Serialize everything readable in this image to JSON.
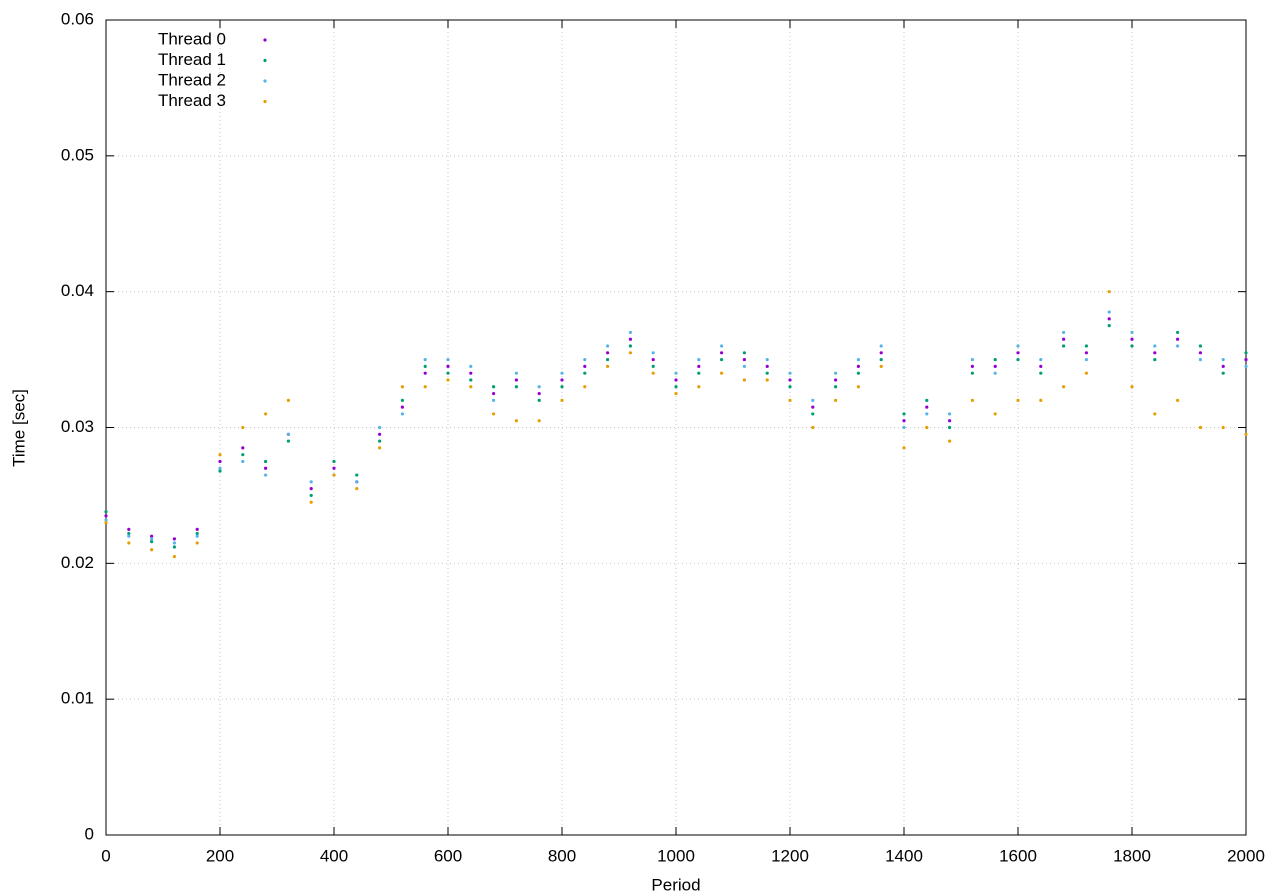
{
  "chart_data": {
    "type": "scatter",
    "x_label": "Period",
    "y_label": "Time [sec]",
    "xlim": [
      0,
      2000
    ],
    "ylim": [
      0,
      0.06
    ],
    "xticks": [
      0,
      200,
      400,
      600,
      800,
      1000,
      1200,
      1400,
      1600,
      1800,
      2000
    ],
    "yticks": [
      0,
      0.01,
      0.02,
      0.03,
      0.04,
      0.05,
      0.06
    ],
    "grid": true,
    "legend": "top-left",
    "x": [
      0,
      40,
      80,
      120,
      160,
      200,
      240,
      280,
      320,
      360,
      400,
      440,
      480,
      520,
      560,
      600,
      640,
      680,
      720,
      760,
      800,
      840,
      880,
      920,
      960,
      1000,
      1040,
      1080,
      1120,
      1160,
      1200,
      1240,
      1280,
      1320,
      1360,
      1400,
      1440,
      1480,
      1520,
      1560,
      1600,
      1640,
      1680,
      1720,
      1760,
      1800,
      1840,
      1880,
      1920,
      1960,
      2000
    ],
    "series": [
      {
        "name": "Thread 0",
        "color": "#9400d3",
        "values": [
          0.0235,
          0.0225,
          0.022,
          0.0218,
          0.0225,
          0.0275,
          0.0285,
          0.027,
          0.0295,
          0.0255,
          0.027,
          0.026,
          0.0295,
          0.0315,
          0.034,
          0.0345,
          0.034,
          0.0325,
          0.0335,
          0.0325,
          0.0335,
          0.0345,
          0.0355,
          0.0365,
          0.035,
          0.0335,
          0.0345,
          0.0355,
          0.035,
          0.0345,
          0.0335,
          0.0315,
          0.0335,
          0.0345,
          0.0355,
          0.0305,
          0.0315,
          0.0305,
          0.0345,
          0.0345,
          0.0355,
          0.0345,
          0.0365,
          0.0355,
          0.038,
          0.0365,
          0.0355,
          0.0365,
          0.0355,
          0.0345,
          0.035
        ]
      },
      {
        "name": "Thread 1",
        "color": "#009e73",
        "values": [
          0.0238,
          0.0222,
          0.0216,
          0.0212,
          0.0222,
          0.0268,
          0.028,
          0.0275,
          0.029,
          0.025,
          0.0275,
          0.0265,
          0.029,
          0.032,
          0.0345,
          0.034,
          0.0335,
          0.033,
          0.033,
          0.032,
          0.033,
          0.034,
          0.035,
          0.036,
          0.0345,
          0.033,
          0.034,
          0.035,
          0.0355,
          0.034,
          0.033,
          0.031,
          0.033,
          0.034,
          0.035,
          0.031,
          0.032,
          0.03,
          0.034,
          0.035,
          0.035,
          0.034,
          0.036,
          0.036,
          0.0375,
          0.036,
          0.035,
          0.037,
          0.036,
          0.034,
          0.0355
        ]
      },
      {
        "name": "Thread 2",
        "color": "#56b4e9",
        "values": [
          0.0232,
          0.022,
          0.0218,
          0.0215,
          0.022,
          0.027,
          0.0275,
          0.0265,
          0.0295,
          0.026,
          0.0265,
          0.026,
          0.03,
          0.031,
          0.035,
          0.035,
          0.0345,
          0.032,
          0.034,
          0.033,
          0.034,
          0.035,
          0.036,
          0.037,
          0.0355,
          0.034,
          0.035,
          0.036,
          0.0345,
          0.035,
          0.034,
          0.032,
          0.034,
          0.035,
          0.036,
          0.03,
          0.031,
          0.031,
          0.035,
          0.034,
          0.036,
          0.035,
          0.037,
          0.035,
          0.0385,
          0.037,
          0.036,
          0.036,
          0.035,
          0.035,
          0.0345
        ]
      },
      {
        "name": "Thread 3",
        "color": "#e69f00",
        "values": [
          0.023,
          0.0215,
          0.021,
          0.0205,
          0.0215,
          0.028,
          0.03,
          0.031,
          0.032,
          0.0245,
          0.0265,
          0.0255,
          0.0285,
          0.033,
          0.033,
          0.0335,
          0.033,
          0.031,
          0.0305,
          0.0305,
          0.032,
          0.033,
          0.0345,
          0.0355,
          0.034,
          0.0325,
          0.033,
          0.034,
          0.0335,
          0.0335,
          0.032,
          0.03,
          0.032,
          0.033,
          0.0345,
          0.0285,
          0.03,
          0.029,
          0.032,
          0.031,
          0.032,
          0.032,
          0.033,
          0.034,
          0.04,
          0.033,
          0.031,
          0.032,
          0.03,
          0.03,
          0.0295
        ]
      }
    ]
  }
}
